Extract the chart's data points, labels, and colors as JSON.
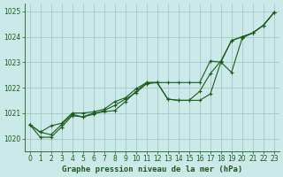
{
  "title": "Graphe pression niveau de la mer (hPa)",
  "bg_color": "#cce9e9",
  "grid_color": "#aacccc",
  "line_color": "#1a5c1a",
  "xlim": [
    -0.5,
    23.5
  ],
  "ylim": [
    1019.5,
    1025.3
  ],
  "yticks": [
    1020,
    1021,
    1022,
    1023,
    1024,
    1025
  ],
  "xticks": [
    0,
    1,
    2,
    3,
    4,
    5,
    6,
    7,
    8,
    9,
    10,
    11,
    12,
    13,
    14,
    15,
    16,
    17,
    18,
    19,
    20,
    21,
    22,
    23
  ],
  "series1_x": [
    0,
    1,
    2,
    3,
    4,
    5,
    6,
    7,
    8,
    9,
    10,
    11,
    12,
    13,
    14,
    15,
    16,
    17,
    18,
    19,
    20,
    21,
    22,
    23
  ],
  "series1_y": [
    1020.55,
    1020.25,
    1020.15,
    1020.55,
    1020.95,
    1020.85,
    1021.0,
    1021.05,
    1021.1,
    1021.45,
    1021.85,
    1022.2,
    1022.2,
    1021.55,
    1021.5,
    1021.5,
    1021.5,
    1021.75,
    1023.0,
    1022.6,
    1023.95,
    1024.15,
    1024.45,
    1024.95
  ],
  "series2_x": [
    0,
    1,
    2,
    3,
    4,
    5,
    6,
    7,
    8,
    9,
    10,
    11,
    12,
    13,
    14,
    15,
    16,
    17,
    18,
    19,
    20,
    21,
    22,
    23
  ],
  "series2_y": [
    1020.55,
    1020.05,
    1020.05,
    1020.45,
    1020.9,
    1020.85,
    1020.95,
    1021.1,
    1021.3,
    1021.55,
    1021.8,
    1022.15,
    1022.2,
    1022.2,
    1022.2,
    1022.2,
    1022.2,
    1023.05,
    1023.0,
    1023.85,
    1024.0,
    1024.15,
    1024.45,
    1024.95
  ],
  "series3_x": [
    0,
    1,
    2,
    3,
    4,
    5,
    6,
    7,
    8,
    9,
    10,
    11,
    12,
    13,
    14,
    15,
    16,
    17,
    18,
    19,
    20,
    21,
    22,
    23
  ],
  "series3_y": [
    1020.55,
    1020.25,
    1020.5,
    1020.6,
    1021.0,
    1021.0,
    1021.05,
    1021.15,
    1021.45,
    1021.6,
    1021.95,
    1022.2,
    1022.2,
    1021.55,
    1021.5,
    1021.5,
    1021.85,
    1022.55,
    1023.05,
    1023.85,
    1024.0,
    1024.15,
    1024.45,
    1024.95
  ],
  "lw": 0.8,
  "ms": 3.0,
  "title_fontsize": 6.5,
  "tick_fontsize": 5.5
}
